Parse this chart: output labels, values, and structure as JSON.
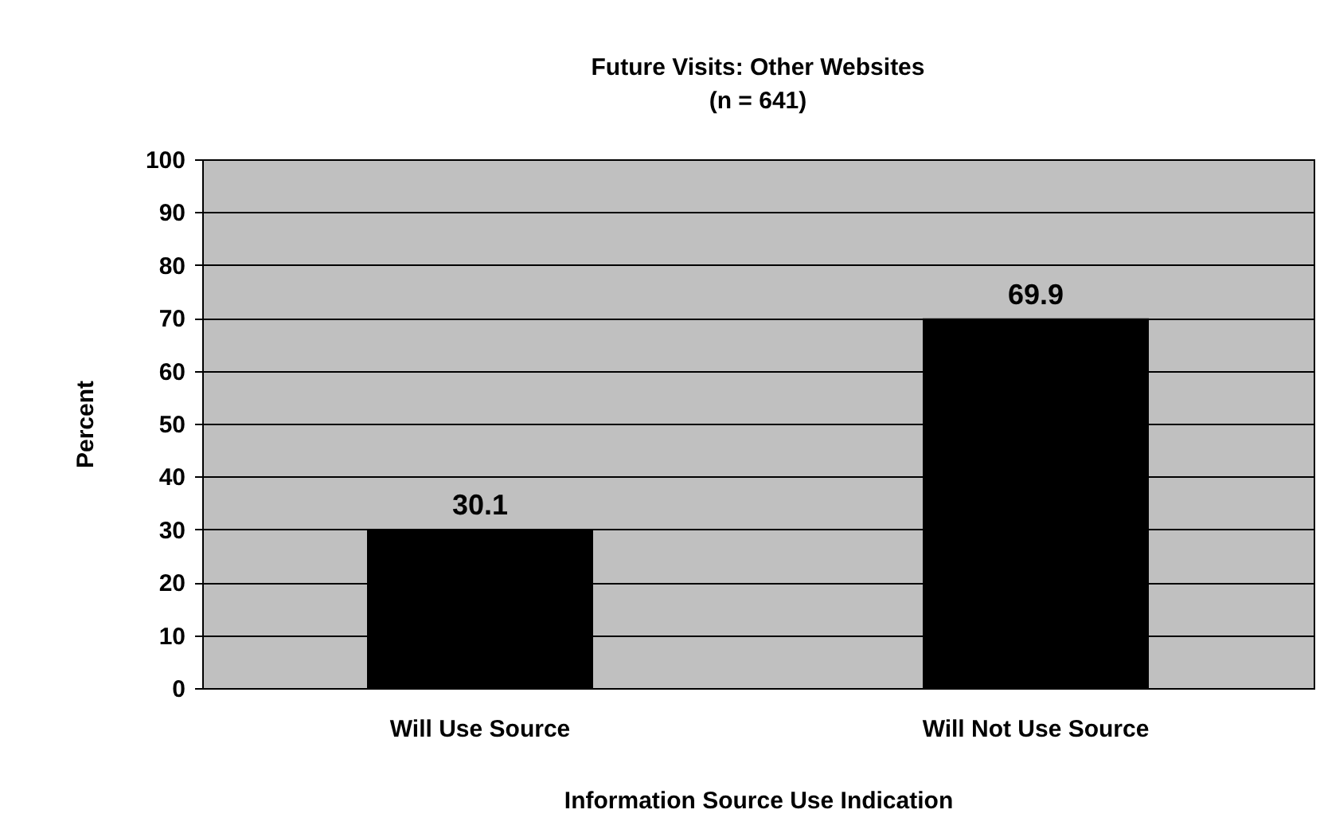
{
  "chart_data": {
    "type": "bar",
    "title": "Future Visits: Other Websites",
    "subtitle": "(n = 641)",
    "xlabel": "Information Source Use Indication",
    "ylabel": "Percent",
    "categories": [
      "Will Use Source",
      "Will Not Use Source"
    ],
    "values": [
      30.1,
      69.9
    ],
    "color": "#000000",
    "ylim": [
      0,
      100
    ],
    "yticks": [
      0,
      10,
      20,
      30,
      40,
      50,
      60,
      70,
      80,
      90,
      100
    ],
    "grid": "y",
    "data_labels": true
  }
}
